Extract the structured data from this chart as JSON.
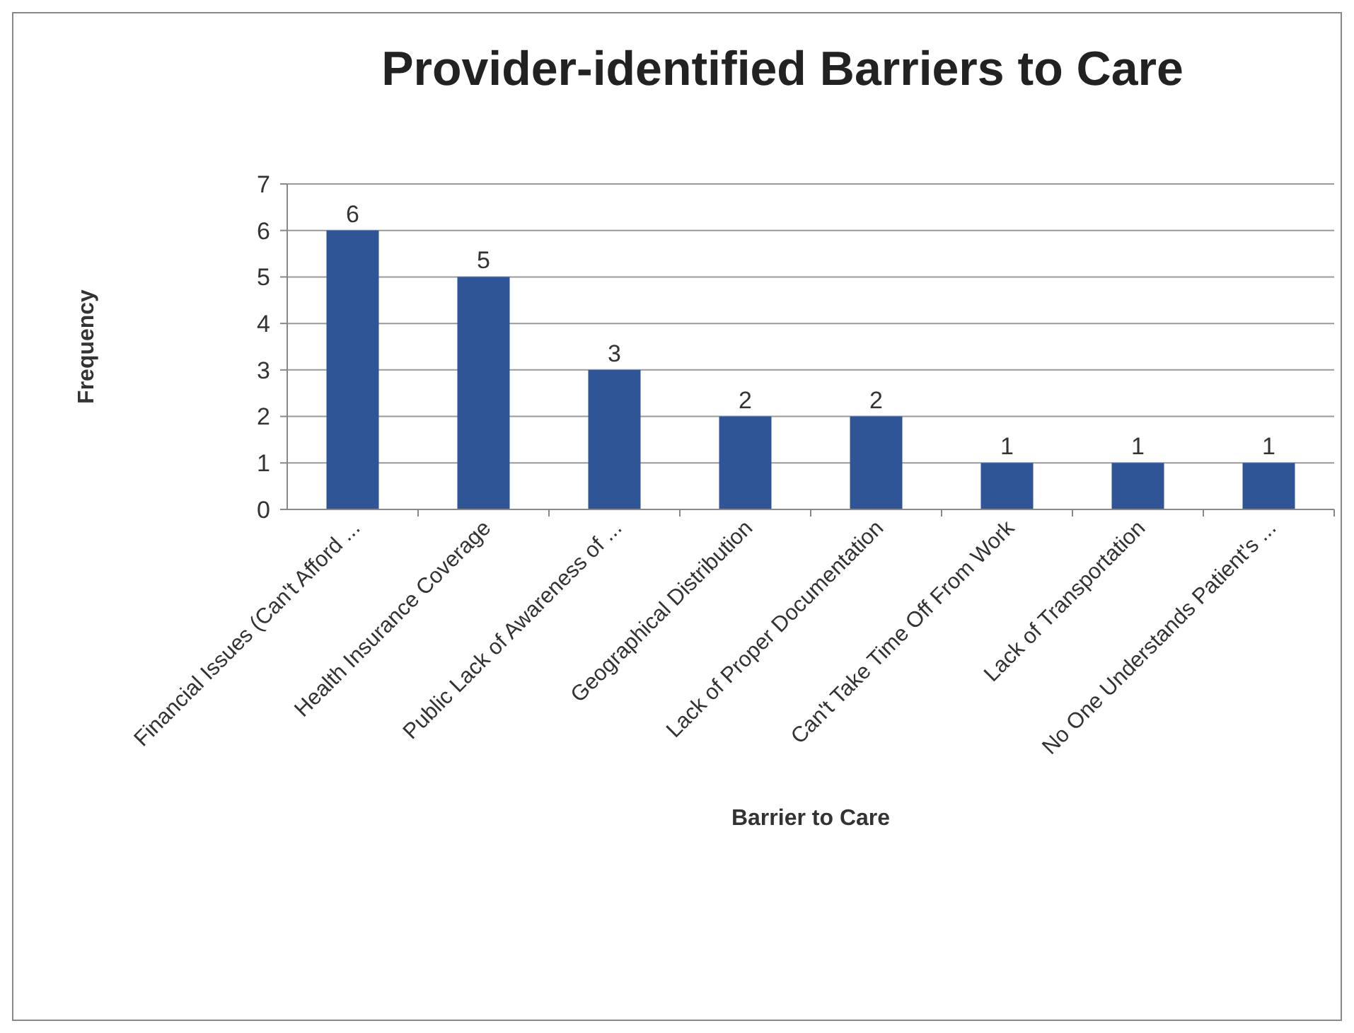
{
  "chart_data": {
    "type": "bar",
    "title": "Provider-identified Barriers to Care",
    "xlabel": "Barrier to Care",
    "ylabel": "Frequency",
    "categories": [
      "Financial Issues (Can't Afford ...",
      "Health Insurance Coverage",
      "Public Lack of Awareness of ...",
      "Geographical Distribution",
      "Lack of Proper Documentation",
      "Can't Take Time Off From Work",
      "Lack of Transportation",
      "No One Understands Patient's ..."
    ],
    "values": [
      6,
      5,
      3,
      2,
      2,
      1,
      1,
      1
    ],
    "color": "#2f5597",
    "ylim": [
      0,
      7
    ],
    "yticks": [
      0,
      1,
      2,
      3,
      4,
      5,
      6,
      7
    ],
    "grid": "y",
    "data_labels": true
  }
}
